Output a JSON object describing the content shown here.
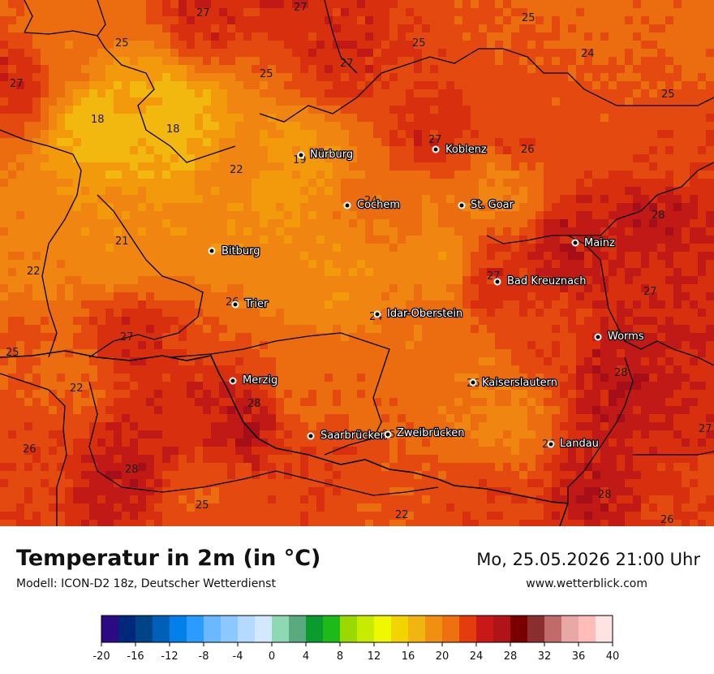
{
  "map": {
    "background_color": "#e8740e",
    "color_palette": {
      "t18": "#f2b810",
      "t20": "#f39a0c",
      "t22": "#f08512",
      "t24": "#ec6d10",
      "t26": "#e44a10",
      "t27": "#d8300e",
      "t28": "#c11a16",
      "t30": "#a60e18"
    },
    "cities": [
      {
        "name": "Nürburg",
        "kind": "city-dot"
      },
      {
        "name": "Koblenz",
        "kind": "city-dot"
      },
      {
        "name": "Cochem",
        "kind": "city-dot"
      },
      {
        "name": "St. Goar",
        "kind": "city-dot"
      },
      {
        "name": "Mainz",
        "kind": "city-dot"
      },
      {
        "name": "Bitburg",
        "kind": "city-dot"
      },
      {
        "name": "Bad Kreuznach",
        "kind": "city-dot"
      },
      {
        "name": "Trier",
        "kind": "city-dot"
      },
      {
        "name": "Idar-Oberstein",
        "kind": "city-dot"
      },
      {
        "name": "Worms",
        "kind": "city-dot"
      },
      {
        "name": "Merzig",
        "kind": "city-dot"
      },
      {
        "name": "Kaiserslautern",
        "kind": "city-dot"
      },
      {
        "name": "Saarbrücken",
        "kind": "city-dot"
      },
      {
        "name": "Zweibrücken",
        "kind": "city-dot"
      },
      {
        "name": "Landau",
        "kind": "city-dot"
      }
    ],
    "value_labels": [
      "27",
      "27",
      "25",
      "25",
      "25",
      "24",
      "27",
      "27",
      "25",
      "25",
      "18",
      "18",
      "19",
      "22",
      "27",
      "26",
      "24",
      "28",
      "21",
      "22",
      "27",
      "27",
      "26",
      "24",
      "27",
      "25",
      "28",
      "22",
      "28",
      "26",
      "25",
      "26",
      "28",
      "26",
      "27",
      "25",
      "22",
      "28",
      "26"
    ]
  },
  "title": "Temperatur in 2m (in °C)",
  "model": "Modell: ICON-D2 18z, Deutscher Wetterdienst",
  "datetime": "Mo, 25.05.2026 21:00 Uhr",
  "website": "www.wetterblick.com",
  "legend": {
    "colors": [
      "#2b0a84",
      "#00287a",
      "#004488",
      "#0060b8",
      "#0080e8",
      "#2a9cff",
      "#6ab8ff",
      "#8cc8ff",
      "#b4daff",
      "#d2e8ff",
      "#8ed8b4",
      "#5aaa80",
      "#0a9a2e",
      "#1eba1a",
      "#9ad800",
      "#c8ec00",
      "#f0f800",
      "#f2d400",
      "#f2b410",
      "#f09010",
      "#ee7010",
      "#e43c0c",
      "#c81818",
      "#b01418",
      "#7a0000",
      "#8a2e30",
      "#c06a6a",
      "#e8a8a6",
      "#ffbcb8",
      "#ffe2e2"
    ],
    "ticks": [
      "-20",
      "-16",
      "-12",
      "-8",
      "-4",
      "0",
      "4",
      "8",
      "12",
      "16",
      "20",
      "24",
      "28",
      "32",
      "36",
      "40"
    ]
  }
}
